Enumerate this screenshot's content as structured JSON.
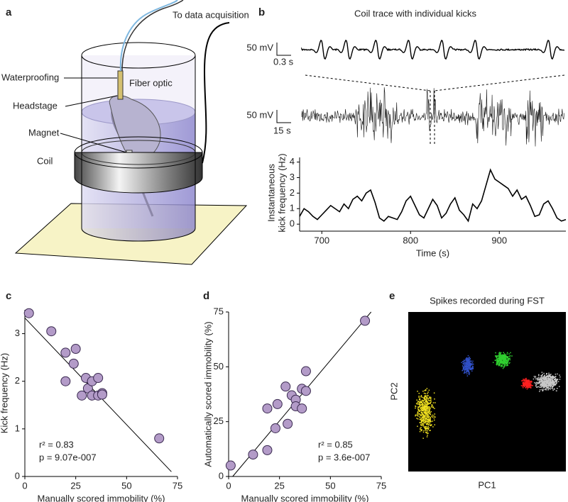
{
  "panel_labels": [
    "a",
    "b",
    "c",
    "d",
    "e"
  ],
  "diagram": {
    "labels": {
      "acquisition": "To data acquisition",
      "waterproofing": "Waterproofing",
      "fiber": "Fiber optic",
      "headstage": "Headstage",
      "magnet": "Magnet",
      "coil": "Coil"
    }
  },
  "chart_data": [
    {
      "type": "line",
      "title": "Coil trace with individual kicks",
      "xlabel": "Time (s)",
      "ylabel": [
        "Instantaneous",
        "kick frequency (Hz)"
      ],
      "scale_bars": [
        "50 mV",
        "0.3 s",
        "50 mV",
        "15 s"
      ],
      "x": [
        675,
        680,
        685,
        690,
        695,
        700,
        705,
        710,
        715,
        720,
        725,
        730,
        735,
        740,
        745,
        750,
        755,
        760,
        765,
        770,
        775,
        780,
        785,
        790,
        795,
        800,
        805,
        810,
        815,
        820,
        825,
        830,
        835,
        840,
        845,
        850,
        855,
        860,
        865,
        870,
        875,
        880,
        885,
        890,
        895,
        900,
        905,
        910,
        915,
        920,
        925,
        930,
        935,
        940,
        945,
        950,
        955,
        960,
        965,
        970,
        975
      ],
      "values": [
        0.5,
        1.0,
        0.8,
        0.5,
        0.3,
        0.6,
        0.9,
        1.2,
        1.0,
        0.8,
        1.3,
        1.0,
        1.6,
        1.8,
        1.5,
        2.0,
        2.2,
        1.4,
        0.4,
        0.2,
        0.5,
        0.4,
        0.3,
        0.8,
        1.5,
        1.8,
        1.2,
        0.6,
        0.4,
        1.0,
        1.6,
        1.2,
        0.4,
        0.7,
        1.3,
        1.7,
        0.9,
        0.6,
        0.2,
        1.3,
        1.0,
        1.5,
        2.5,
        3.5,
        2.9,
        2.7,
        2.5,
        2.3,
        1.8,
        2.2,
        1.6,
        1.8,
        1.2,
        0.5,
        0.6,
        1.3,
        1.5,
        1.0,
        0.4,
        0.2,
        0.3
      ],
      "color": "#000000",
      "xlim": [
        675,
        975
      ],
      "ylim": [
        -0.45,
        4.3
      ],
      "xticks": [
        700,
        800,
        900
      ],
      "yticks": [
        0,
        1,
        2,
        3,
        4
      ]
    },
    {
      "type": "scatter",
      "xlabel": "Manually scored immobility (%)",
      "ylabel": "Kick frequency (Hz)",
      "x": [
        2,
        13,
        20,
        25,
        24,
        20,
        30,
        28,
        31,
        33,
        33,
        36,
        36,
        38,
        38,
        66
      ],
      "values": [
        3.43,
        3.05,
        2.6,
        2.68,
        2.37,
        2.0,
        2.07,
        1.7,
        1.85,
        2.0,
        1.7,
        2.07,
        1.7,
        1.75,
        1.72,
        0.8
      ],
      "color": "#b39bc8",
      "fit_line": {
        "x": [
          0,
          72
        ],
        "y": [
          3.33,
          0.1
        ]
      },
      "annotations": [
        "r² = 0.83",
        "p = 9.07e-007"
      ],
      "xlim": [
        0,
        75
      ],
      "ylim": [
        0,
        3.5
      ],
      "xticks": [
        0,
        25,
        50,
        75
      ],
      "yticks": [
        0,
        1,
        2,
        3
      ]
    },
    {
      "type": "scatter",
      "xlabel": "Manually scored immobility (%)",
      "ylabel": "Automatically scored immobility (%)",
      "x": [
        1,
        12,
        19,
        19,
        23,
        24,
        28,
        29,
        31,
        33,
        33,
        36,
        36,
        38,
        38,
        67
      ],
      "values": [
        5,
        10,
        12,
        31,
        22,
        33,
        41,
        24,
        37,
        35,
        32,
        31,
        40,
        48,
        39,
        71
      ],
      "color": "#b39bc8",
      "fit_line": {
        "x": [
          2,
          70
        ],
        "y": [
          0,
          75
        ]
      },
      "annotations": [
        "r² = 0.85",
        "p = 3.6e-007"
      ],
      "xlim": [
        0,
        75
      ],
      "ylim": [
        0,
        75
      ],
      "xticks": [
        0,
        25,
        50,
        75
      ],
      "yticks": [
        0,
        25,
        50,
        75
      ]
    },
    {
      "type": "clusters",
      "title": "Spikes recorded during FST",
      "xlabel": "PC1",
      "ylabel": "PC2",
      "background": "#000000",
      "cluster_colors": [
        "#f0e020",
        "#3050c8",
        "#30d030",
        "#ff2020",
        "#c8c8c8"
      ]
    }
  ]
}
